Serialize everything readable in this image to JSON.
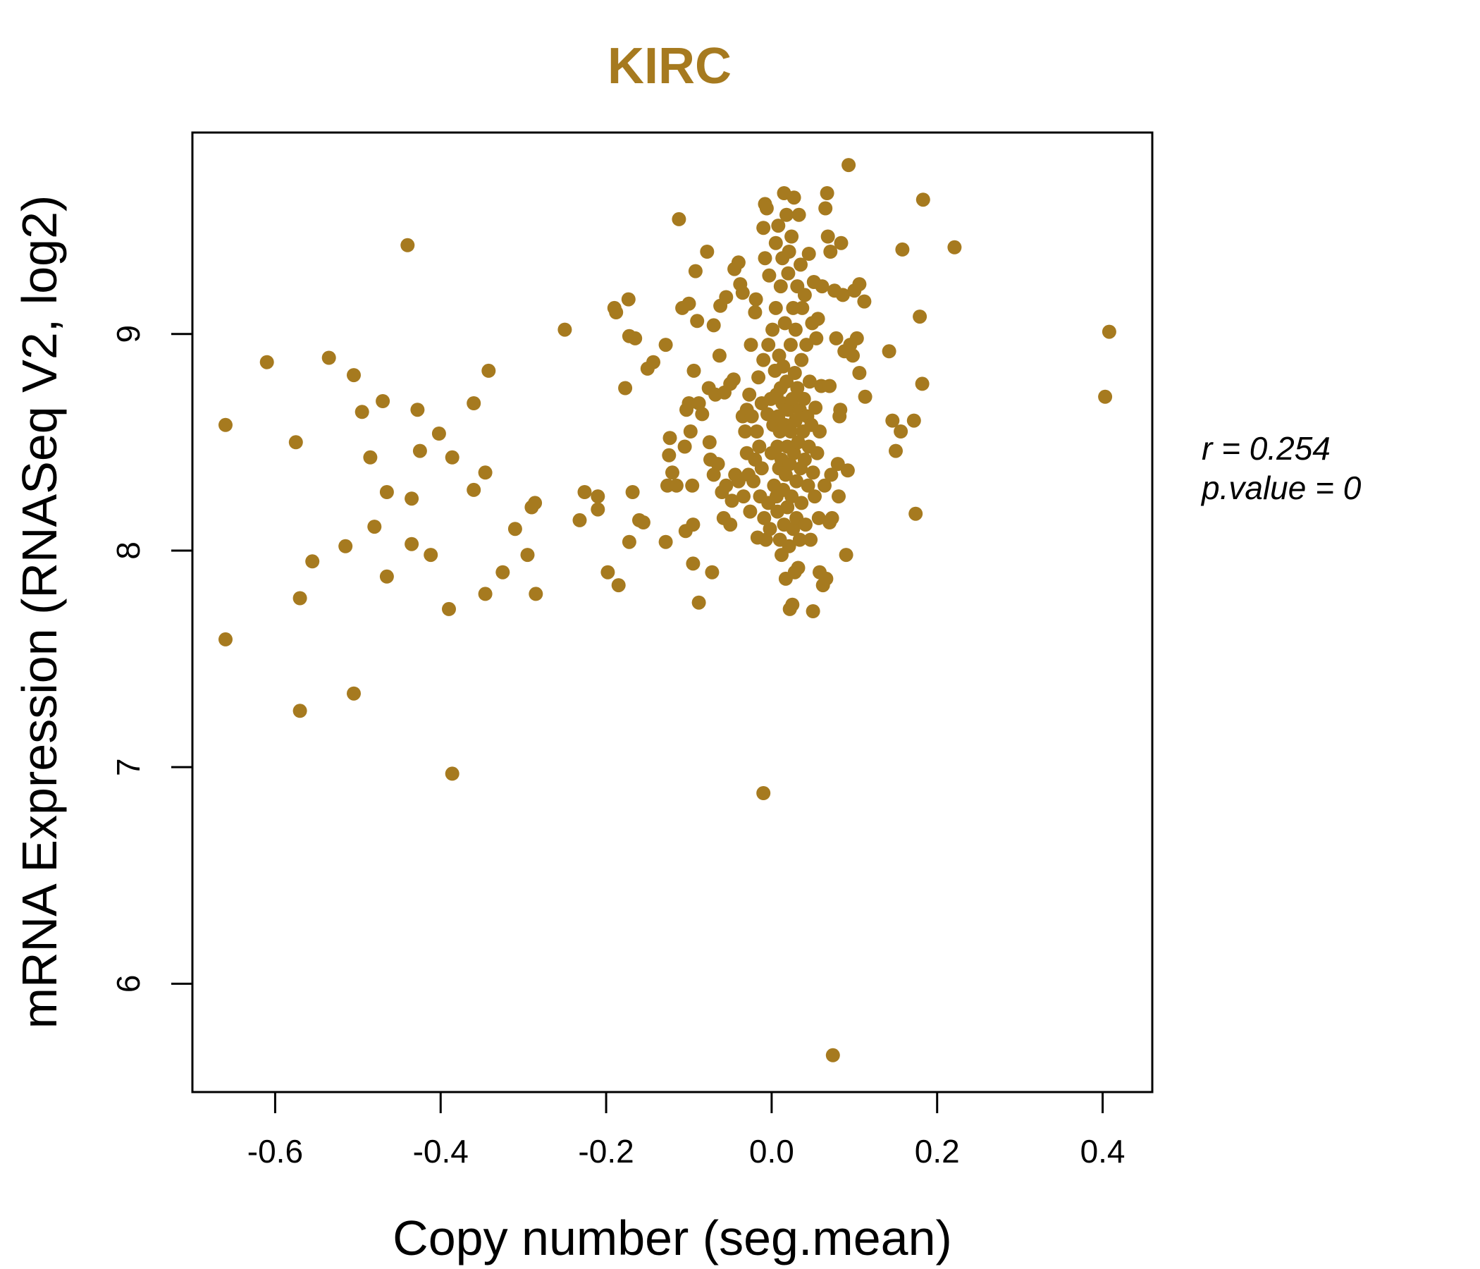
{
  "chart_data": {
    "type": "scatter",
    "title": "KIRC",
    "xlabel": "Copy number (seg.mean)",
    "ylabel": "mRNA Expression (RNASeq V2, log2)",
    "xlim": [
      -0.7,
      0.46
    ],
    "ylim": [
      5.5,
      9.93
    ],
    "x_ticks": [
      -0.6,
      -0.4,
      -0.2,
      0.0,
      0.2,
      0.4
    ],
    "x_tick_labels": [
      "-0.6",
      "-0.4",
      "-0.2",
      "0.0",
      "0.2",
      "0.4"
    ],
    "y_ticks": [
      6,
      7,
      8,
      9
    ],
    "y_tick_labels": [
      "6",
      "7",
      "8",
      "9"
    ],
    "grid": false,
    "point_color": "#A67A1F",
    "annotation": {
      "r_label": "r = 0.254",
      "p_label": "p.value = 0"
    },
    "points": [
      [
        -0.66,
        8.58
      ],
      [
        -0.66,
        7.59
      ],
      [
        -0.61,
        8.87
      ],
      [
        -0.575,
        8.5
      ],
      [
        -0.57,
        7.78
      ],
      [
        -0.57,
        7.26
      ],
      [
        -0.555,
        7.95
      ],
      [
        -0.535,
        8.89
      ],
      [
        -0.515,
        8.02
      ],
      [
        -0.505,
        8.81
      ],
      [
        -0.505,
        7.34
      ],
      [
        -0.495,
        8.64
      ],
      [
        -0.485,
        8.43
      ],
      [
        -0.48,
        8.11
      ],
      [
        -0.47,
        8.69
      ],
      [
        -0.465,
        8.27
      ],
      [
        -0.465,
        7.88
      ],
      [
        -0.44,
        9.41
      ],
      [
        -0.435,
        8.24
      ],
      [
        -0.435,
        8.03
      ],
      [
        -0.428,
        8.65
      ],
      [
        -0.425,
        8.46
      ],
      [
        -0.412,
        7.98
      ],
      [
        -0.402,
        8.54
      ],
      [
        -0.39,
        7.73
      ],
      [
        -0.386,
        8.43
      ],
      [
        -0.386,
        6.97
      ],
      [
        -0.36,
        8.68
      ],
      [
        -0.36,
        8.28
      ],
      [
        -0.346,
        8.36
      ],
      [
        -0.346,
        7.8
      ],
      [
        -0.342,
        8.83
      ],
      [
        -0.325,
        7.9
      ],
      [
        -0.31,
        8.1
      ],
      [
        -0.295,
        7.98
      ],
      [
        -0.29,
        8.2
      ],
      [
        -0.286,
        8.22
      ],
      [
        -0.285,
        7.8
      ],
      [
        -0.25,
        9.02
      ],
      [
        -0.232,
        8.14
      ],
      [
        -0.226,
        8.27
      ],
      [
        -0.21,
        8.25
      ],
      [
        -0.21,
        8.19
      ],
      [
        -0.198,
        7.9
      ],
      [
        -0.19,
        9.12
      ],
      [
        -0.188,
        9.1
      ],
      [
        -0.185,
        7.84
      ],
      [
        -0.177,
        8.75
      ],
      [
        -0.173,
        9.16
      ],
      [
        -0.172,
        8.04
      ],
      [
        -0.172,
        8.99
      ],
      [
        -0.168,
        8.27
      ],
      [
        -0.165,
        8.98
      ],
      [
        -0.16,
        8.14
      ],
      [
        -0.155,
        8.13
      ],
      [
        -0.15,
        8.84
      ],
      [
        -0.143,
        8.87
      ],
      [
        -0.128,
        8.95
      ],
      [
        -0.128,
        8.04
      ],
      [
        -0.126,
        8.3
      ],
      [
        -0.124,
        8.44
      ],
      [
        -0.123,
        8.52
      ],
      [
        -0.12,
        8.36
      ],
      [
        -0.115,
        8.3
      ],
      [
        -0.112,
        9.53
      ],
      [
        -0.108,
        9.12
      ],
      [
        -0.105,
        8.48
      ],
      [
        -0.104,
        8.09
      ],
      [
        -0.103,
        8.65
      ],
      [
        -0.1,
        9.14
      ],
      [
        -0.1,
        8.68
      ],
      [
        -0.098,
        8.55
      ],
      [
        -0.096,
        8.3
      ],
      [
        -0.095,
        8.12
      ],
      [
        -0.095,
        7.94
      ],
      [
        -0.094,
        8.83
      ],
      [
        -0.092,
        9.29
      ],
      [
        -0.09,
        9.06
      ],
      [
        -0.088,
        7.76
      ],
      [
        -0.088,
        8.68
      ],
      [
        -0.084,
        8.63
      ],
      [
        -0.078,
        9.38
      ],
      [
        -0.076,
        8.75
      ],
      [
        -0.075,
        8.5
      ],
      [
        -0.074,
        8.42
      ],
      [
        -0.072,
        7.9
      ],
      [
        -0.07,
        8.35
      ],
      [
        -0.07,
        9.04
      ],
      [
        -0.068,
        8.72
      ],
      [
        -0.065,
        8.4
      ],
      [
        -0.063,
        8.9
      ],
      [
        -0.062,
        9.13
      ],
      [
        -0.06,
        8.27
      ],
      [
        -0.058,
        8.15
      ],
      [
        -0.057,
        8.73
      ],
      [
        -0.055,
        9.17
      ],
      [
        -0.055,
        8.3
      ],
      [
        -0.05,
        8.77
      ],
      [
        -0.05,
        8.12
      ],
      [
        -0.048,
        8.23
      ],
      [
        -0.046,
        8.79
      ],
      [
        -0.045,
        9.3
      ],
      [
        -0.044,
        8.35
      ],
      [
        -0.04,
        9.33
      ],
      [
        -0.04,
        8.32
      ],
      [
        -0.038,
        9.23
      ],
      [
        -0.035,
        8.62
      ],
      [
        -0.035,
        9.19
      ],
      [
        -0.034,
        8.25
      ],
      [
        -0.032,
        8.55
      ],
      [
        -0.03,
        8.45
      ],
      [
        -0.03,
        8.65
      ],
      [
        -0.028,
        8.35
      ],
      [
        -0.027,
        8.72
      ],
      [
        -0.026,
        8.18
      ],
      [
        -0.025,
        8.95
      ],
      [
        -0.024,
        8.62
      ],
      [
        -0.022,
        8.32
      ],
      [
        -0.02,
        8.42
      ],
      [
        -0.02,
        9.1
      ],
      [
        -0.019,
        9.16
      ],
      [
        -0.018,
        8.55
      ],
      [
        -0.017,
        8.06
      ],
      [
        -0.016,
        8.8
      ],
      [
        -0.015,
        8.48
      ],
      [
        -0.014,
        8.25
      ],
      [
        -0.012,
        8.38
      ],
      [
        -0.012,
        8.68
      ],
      [
        -0.01,
        8.88
      ],
      [
        -0.01,
        9.49
      ],
      [
        -0.01,
        6.88
      ],
      [
        -0.009,
        8.15
      ],
      [
        -0.008,
        9.35
      ],
      [
        -0.008,
        9.6
      ],
      [
        -0.007,
        8.05
      ],
      [
        -0.006,
        9.58
      ],
      [
        -0.005,
        8.63
      ],
      [
        -0.004,
        8.95
      ],
      [
        -0.004,
        8.22
      ],
      [
        -0.003,
        9.27
      ],
      [
        -0.002,
        8.1
      ],
      [
        -0.001,
        8.7
      ],
      [
        0.0,
        8.45
      ],
      [
        0.001,
        9.02
      ],
      [
        0.002,
        8.58
      ],
      [
        0.003,
        8.3
      ],
      [
        0.004,
        8.83
      ],
      [
        0.005,
        9.42
      ],
      [
        0.005,
        9.12
      ],
      [
        0.006,
        8.25
      ],
      [
        0.006,
        8.72
      ],
      [
        0.007,
        8.48
      ],
      [
        0.007,
        8.18
      ],
      [
        0.008,
        8.62
      ],
      [
        0.008,
        9.5
      ],
      [
        0.009,
        8.38
      ],
      [
        0.009,
        8.9
      ],
      [
        0.01,
        8.05
      ],
      [
        0.01,
        8.55
      ],
      [
        0.011,
        8.75
      ],
      [
        0.011,
        9.22
      ],
      [
        0.012,
        8.42
      ],
      [
        0.012,
        7.98
      ],
      [
        0.013,
        9.35
      ],
      [
        0.013,
        8.68
      ],
      [
        0.014,
        8.28
      ],
      [
        0.014,
        8.85
      ],
      [
        0.015,
        9.65
      ],
      [
        0.015,
        8.12
      ],
      [
        0.016,
        8.58
      ],
      [
        0.016,
        9.05
      ],
      [
        0.017,
        8.35
      ],
      [
        0.017,
        7.87
      ],
      [
        0.018,
        8.78
      ],
      [
        0.018,
        9.55
      ],
      [
        0.019,
        8.48
      ],
      [
        0.019,
        8.2
      ],
      [
        0.02,
        9.28
      ],
      [
        0.02,
        8.65
      ],
      [
        0.021,
        8.02
      ],
      [
        0.021,
        9.38
      ],
      [
        0.022,
        8.4
      ],
      [
        0.022,
        7.73
      ],
      [
        0.023,
        8.95
      ],
      [
        0.023,
        8.55
      ],
      [
        0.024,
        9.45
      ],
      [
        0.024,
        8.25
      ],
      [
        0.025,
        7.75
      ],
      [
        0.025,
        8.7
      ],
      [
        0.026,
        9.12
      ],
      [
        0.026,
        8.1
      ],
      [
        0.027,
        8.45
      ],
      [
        0.027,
        9.63
      ],
      [
        0.028,
        8.82
      ],
      [
        0.028,
        7.9
      ],
      [
        0.029,
        8.6
      ],
      [
        0.029,
        9.02
      ],
      [
        0.03,
        8.32
      ],
      [
        0.03,
        8.15
      ],
      [
        0.031,
        9.22
      ],
      [
        0.031,
        8.75
      ],
      [
        0.032,
        8.5
      ],
      [
        0.032,
        7.92
      ],
      [
        0.033,
        9.55
      ],
      [
        0.034,
        8.65
      ],
      [
        0.034,
        8.05
      ],
      [
        0.035,
        8.38
      ],
      [
        0.035,
        9.32
      ],
      [
        0.036,
        8.88
      ],
      [
        0.036,
        8.22
      ],
      [
        0.037,
        9.12
      ],
      [
        0.038,
        8.55
      ],
      [
        0.039,
        8.7
      ],
      [
        0.04,
        8.42
      ],
      [
        0.04,
        9.18
      ],
      [
        0.041,
        8.12
      ],
      [
        0.042,
        8.95
      ],
      [
        0.043,
        8.62
      ],
      [
        0.044,
        8.3
      ],
      [
        0.045,
        9.37
      ],
      [
        0.045,
        8.48
      ],
      [
        0.046,
        8.78
      ],
      [
        0.047,
        8.05
      ],
      [
        0.048,
        8.58
      ],
      [
        0.049,
        9.05
      ],
      [
        0.05,
        7.72
      ],
      [
        0.05,
        8.36
      ],
      [
        0.051,
        9.24
      ],
      [
        0.052,
        8.25
      ],
      [
        0.053,
        8.66
      ],
      [
        0.054,
        8.98
      ],
      [
        0.055,
        8.45
      ],
      [
        0.056,
        9.07
      ],
      [
        0.057,
        8.15
      ],
      [
        0.058,
        7.9
      ],
      [
        0.058,
        8.55
      ],
      [
        0.06,
        8.76
      ],
      [
        0.061,
        9.22
      ],
      [
        0.062,
        7.84
      ],
      [
        0.064,
        8.3
      ],
      [
        0.065,
        9.58
      ],
      [
        0.066,
        7.87
      ],
      [
        0.067,
        9.65
      ],
      [
        0.068,
        9.45
      ],
      [
        0.07,
        8.13
      ],
      [
        0.07,
        8.76
      ],
      [
        0.071,
        9.38
      ],
      [
        0.072,
        8.35
      ],
      [
        0.073,
        8.15
      ],
      [
        0.074,
        5.67
      ],
      [
        0.076,
        9.2
      ],
      [
        0.078,
        8.98
      ],
      [
        0.08,
        8.4
      ],
      [
        0.081,
        8.25
      ],
      [
        0.082,
        8.62
      ],
      [
        0.083,
        8.65
      ],
      [
        0.084,
        9.42
      ],
      [
        0.086,
        9.18
      ],
      [
        0.088,
        8.92
      ],
      [
        0.09,
        7.98
      ],
      [
        0.092,
        8.37
      ],
      [
        0.093,
        9.78
      ],
      [
        0.095,
        8.95
      ],
      [
        0.098,
        8.9
      ],
      [
        0.1,
        9.2
      ],
      [
        0.103,
        8.98
      ],
      [
        0.106,
        9.23
      ],
      [
        0.106,
        8.82
      ],
      [
        0.112,
        9.15
      ],
      [
        0.113,
        8.71
      ],
      [
        0.142,
        8.92
      ],
      [
        0.146,
        8.6
      ],
      [
        0.15,
        8.46
      ],
      [
        0.156,
        8.55
      ],
      [
        0.158,
        9.39
      ],
      [
        0.172,
        8.6
      ],
      [
        0.174,
        8.17
      ],
      [
        0.179,
        9.08
      ],
      [
        0.182,
        8.77
      ],
      [
        0.183,
        9.62
      ],
      [
        0.221,
        9.4
      ],
      [
        0.403,
        8.71
      ],
      [
        0.408,
        9.01
      ]
    ]
  }
}
